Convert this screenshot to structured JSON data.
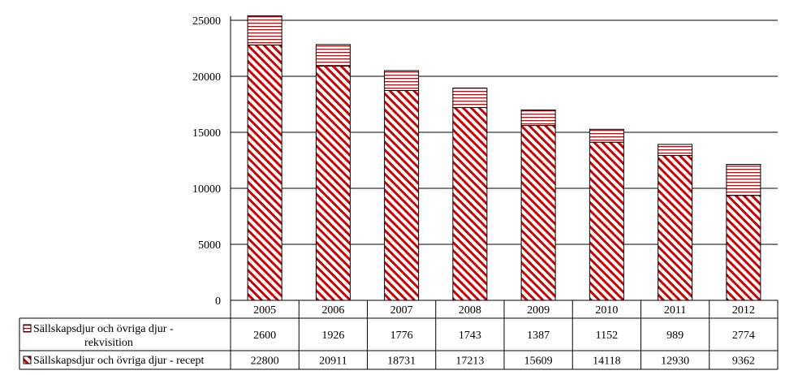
{
  "chart_data": {
    "type": "bar",
    "stacked": true,
    "categories": [
      "2005",
      "2006",
      "2007",
      "2008",
      "2009",
      "2010",
      "2011",
      "2012"
    ],
    "series": [
      {
        "name": "Sällskapsdjur och övriga djur - recept",
        "values": [
          22800,
          20911,
          18731,
          17213,
          15609,
          14118,
          12930,
          9362
        ],
        "pattern": "diagonal-hatch",
        "color": "#cc0000"
      },
      {
        "name": "Sällskapsdjur och övriga djur - rekvisition",
        "values": [
          2600,
          1926,
          1776,
          1743,
          1387,
          1152,
          989,
          2774
        ],
        "pattern": "horizontal-hatch",
        "color": "#cc0000"
      }
    ],
    "y_ticks": [
      "0",
      "5000",
      "10000",
      "15000",
      "20000",
      "25000"
    ],
    "ylim": [
      0,
      25000
    ],
    "grid": true,
    "legend": "data-table-below",
    "table_rows": [
      {
        "label_line1": "Sällskapsdjur och övriga djur -",
        "label_line2": "rekvisition",
        "values": [
          "2600",
          "1926",
          "1776",
          "1743",
          "1387",
          "1152",
          "989",
          "2774"
        ]
      },
      {
        "label_line1": "Sällskapsdjur och övriga djur - recept",
        "values": [
          "22800",
          "20911",
          "18731",
          "17213",
          "15609",
          "14118",
          "12930",
          "9362"
        ]
      }
    ]
  }
}
